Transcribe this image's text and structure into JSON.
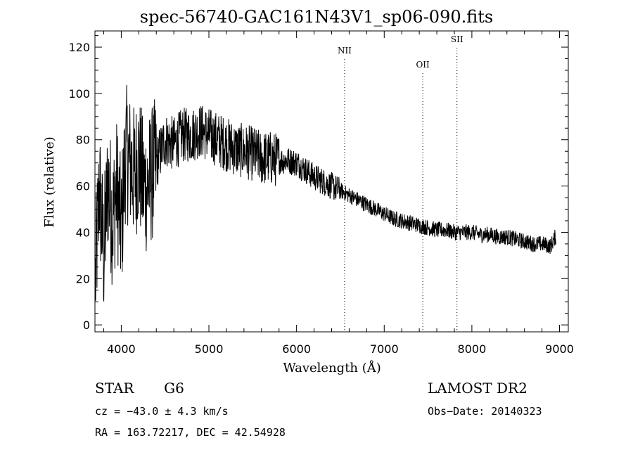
{
  "chart_data": {
    "type": "line",
    "title": "spec-56740-GAC161N43V1_sp06-090.fits",
    "xlabel": "Wavelength (Å)",
    "ylabel": "Flux (relative)",
    "xlim": [
      3700,
      9100
    ],
    "ylim": [
      -3,
      127
    ],
    "xticks": [
      4000,
      5000,
      6000,
      7000,
      8000,
      9000
    ],
    "yticks": [
      0,
      20,
      40,
      60,
      80,
      100,
      120
    ],
    "grid": false,
    "line_color": "#000000",
    "spectrum": {
      "x": [
        3700,
        3750,
        3800,
        3850,
        3900,
        3950,
        4000,
        4050,
        4100,
        4150,
        4200,
        4250,
        4300,
        4350,
        4400,
        4450,
        4500,
        4600,
        4700,
        4800,
        4900,
        5000,
        5100,
        5200,
        5300,
        5400,
        5500,
        5600,
        5700,
        5800,
        5900,
        6000,
        6100,
        6200,
        6300,
        6400,
        6500,
        6600,
        6700,
        6800,
        6900,
        7000,
        7100,
        7200,
        7300,
        7400,
        7500,
        7600,
        7700,
        7800,
        7900,
        8000,
        8100,
        8200,
        8300,
        8400,
        8500,
        8600,
        8700,
        8800,
        8900,
        8950
      ],
      "y": [
        15,
        60,
        30,
        62,
        45,
        60,
        40,
        75,
        70,
        65,
        72,
        60,
        60,
        65,
        70,
        75,
        80,
        78,
        82,
        82,
        84,
        82,
        80,
        78,
        76,
        75,
        74,
        72,
        72,
        71,
        71,
        70,
        67,
        64,
        62,
        60,
        58,
        56,
        54,
        52,
        50,
        48,
        46,
        45,
        44,
        43,
        42,
        41,
        41,
        40,
        40,
        40,
        39,
        39,
        38,
        38,
        37,
        36,
        35,
        35,
        34,
        38
      ]
    },
    "lines": [
      {
        "label": "NII",
        "x": 6548
      },
      {
        "label": "OII",
        "x": 7440
      },
      {
        "label": "SII",
        "x": 7830
      }
    ]
  },
  "info": {
    "class": "STAR",
    "subclass": "G6",
    "survey": "LAMOST DR2",
    "cz": "cz = −43.0 ± 4.3 km/s",
    "obs_date": "Obs−Date: 20140323",
    "coords": "RA = 163.72217, DEC =  42.54928"
  }
}
